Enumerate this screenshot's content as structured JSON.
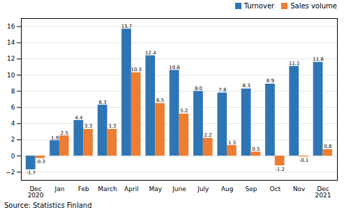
{
  "chart_data": {
    "type": "bar",
    "categories": [
      "Dec\n2020",
      "Jan",
      "Feb",
      "March",
      "April",
      "May",
      "June",
      "July",
      "Aug",
      "Sep",
      "Oct",
      "Nov",
      "Dec\n2021"
    ],
    "series": [
      {
        "name": "Turnover",
        "color": "#2e75b6",
        "values": [
          -1.7,
          1.9,
          4.4,
          6.3,
          15.7,
          12.4,
          10.6,
          8.0,
          7.8,
          8.3,
          8.9,
          11.1,
          11.6
        ],
        "value_labels": [
          "-1.7",
          "1.9",
          "4.4",
          "6.3",
          "15.7",
          "12.4",
          "10.6",
          "8.0",
          "7.8",
          "8.3",
          "8.9",
          "11.1",
          "11.6"
        ]
      },
      {
        "name": "Sales volume",
        "color": "#ed7d31",
        "values": [
          -0.3,
          2.5,
          3.3,
          3.3,
          10.3,
          6.5,
          5.2,
          2.2,
          1.3,
          0.5,
          -1.2,
          -0.1,
          0.8
        ],
        "value_labels": [
          "-0.3",
          "2.5",
          "3.3",
          "3.3",
          "10.3",
          "6.5",
          "5.2",
          "2.2",
          "1.3",
          "0.5",
          "-1.2",
          "-0.1",
          "0.8"
        ]
      }
    ],
    "ylim": [
      -3,
      17
    ],
    "yticks": [
      -2,
      0,
      2,
      4,
      6,
      8,
      10,
      12,
      14,
      16
    ],
    "grid": true,
    "legend": "upper right",
    "data_labels": true,
    "annotations": [
      "Source: Statistics Finland"
    ]
  }
}
